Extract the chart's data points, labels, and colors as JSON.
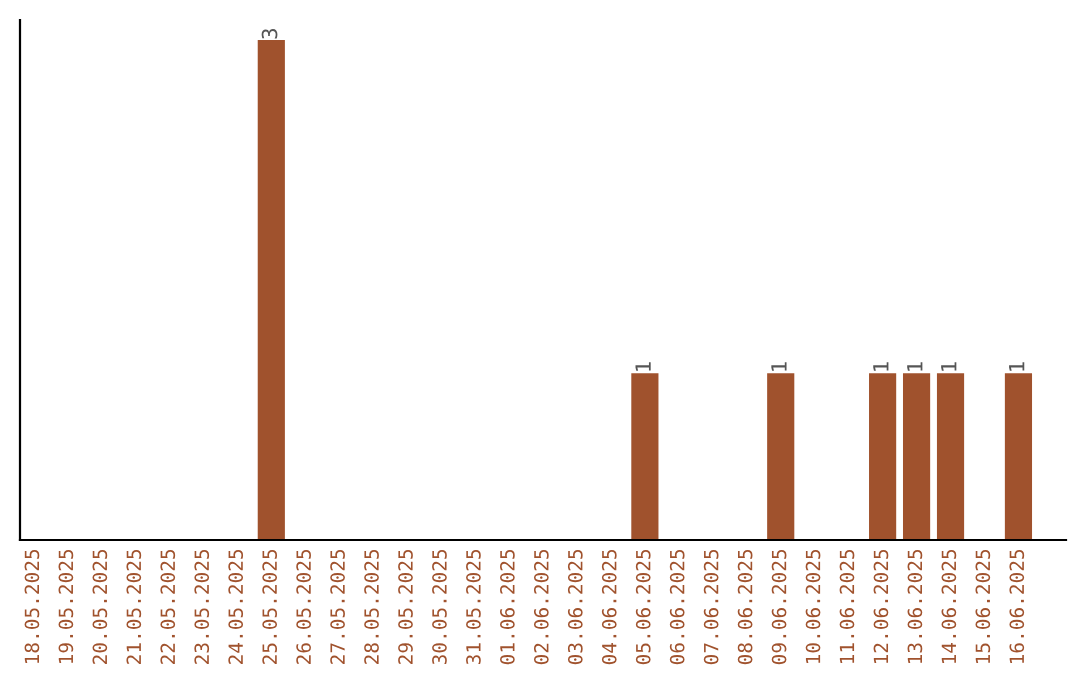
{
  "chart_data": {
    "type": "bar",
    "categories": [
      "18.05.2025",
      "19.05.2025",
      "20.05.2025",
      "21.05.2025",
      "22.05.2025",
      "23.05.2025",
      "24.05.2025",
      "25.05.2025",
      "26.05.2025",
      "27.05.2025",
      "28.05.2025",
      "29.05.2025",
      "30.05.2025",
      "31.05.2025",
      "01.06.2025",
      "02.06.2025",
      "03.06.2025",
      "04.06.2025",
      "05.06.2025",
      "06.06.2025",
      "07.06.2025",
      "08.06.2025",
      "09.06.2025",
      "10.06.2025",
      "11.06.2025",
      "12.06.2025",
      "13.06.2025",
      "14.06.2025",
      "15.06.2025",
      "16.06.2025"
    ],
    "values": [
      0,
      0,
      0,
      0,
      0,
      0,
      0,
      3,
      0,
      0,
      0,
      0,
      0,
      0,
      0,
      0,
      0,
      0,
      1,
      0,
      0,
      0,
      1,
      0,
      0,
      1,
      1,
      1,
      0,
      1
    ],
    "value_labels": [
      null,
      null,
      null,
      null,
      null,
      null,
      null,
      "3",
      null,
      null,
      null,
      null,
      null,
      null,
      null,
      null,
      null,
      null,
      "1",
      null,
      null,
      null,
      "1",
      null,
      null,
      "1",
      "1",
      "1",
      null,
      "1"
    ],
    "color": "#a0522d",
    "tick_labels": "x",
    "grid": false,
    "legend": false
  }
}
